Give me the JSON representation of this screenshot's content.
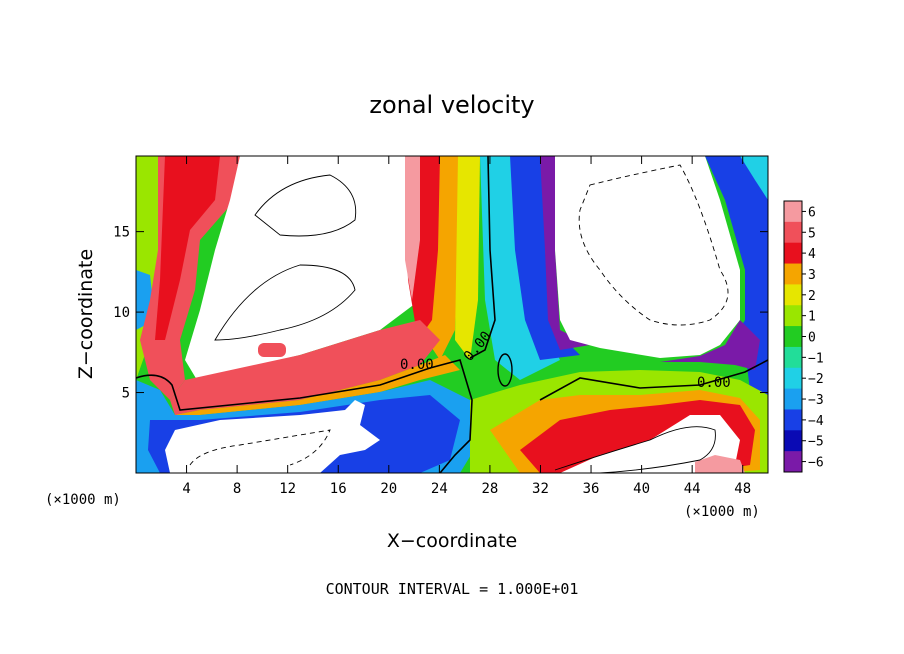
{
  "chart_data": {
    "type": "heatmap",
    "title": "zonal velocity",
    "xlabel": "X−coordinate",
    "ylabel": "Z−coordinate",
    "x_unit": "(×1000 m)",
    "y_unit": "(×1000 m)",
    "footer": "CONTOUR INTERVAL = 1.000E+01",
    "xlim": [
      0,
      50
    ],
    "ylim": [
      0,
      19.7
    ],
    "x_ticks": [
      4,
      8,
      12,
      16,
      20,
      24,
      28,
      32,
      36,
      40,
      44,
      48
    ],
    "x_tick_labels": [
      "4",
      "8",
      "12",
      "16",
      "20",
      "24",
      "28",
      "32",
      "36",
      "40",
      "44",
      "48"
    ],
    "y_ticks": [
      5,
      10,
      15
    ],
    "y_tick_labels": [
      "5",
      "10",
      "15"
    ],
    "colorbar": {
      "levels": [
        6,
        5,
        4,
        3,
        2,
        1,
        0,
        -1,
        -2,
        -3,
        -4,
        -5,
        -6
      ],
      "labels": [
        "6",
        "5",
        "4",
        "3",
        "2",
        "1",
        "0",
        "−1",
        "−2",
        "−3",
        "−4",
        "−5",
        "−6"
      ],
      "colors": [
        "#f59aa0",
        "#f0505a",
        "#e8101e",
        "#f5a500",
        "#e6e600",
        "#9ae600",
        "#22cc22",
        "#22dd99",
        "#20d0e6",
        "#1aa0f0",
        "#1840e6",
        "#0a0ab4",
        "#7a1aa8"
      ]
    },
    "contour_labels": [
      {
        "text": "0.00",
        "x": 17.5,
        "y": 6.8
      },
      {
        "text": "0.00",
        "x": 27.5,
        "y": 7.9
      },
      {
        "text": "0.00",
        "x": 46.0,
        "y": 5.8
      }
    ],
    "regions": [
      {
        "name": "left-upper-positive-jet",
        "value": 5
      },
      {
        "name": "central-positive-column",
        "value": 4
      },
      {
        "name": "right-negative-column",
        "value": -4
      },
      {
        "name": "lower-negative-band",
        "value": -4
      },
      {
        "name": "right-lower-positive-band",
        "value": 4
      }
    ]
  }
}
